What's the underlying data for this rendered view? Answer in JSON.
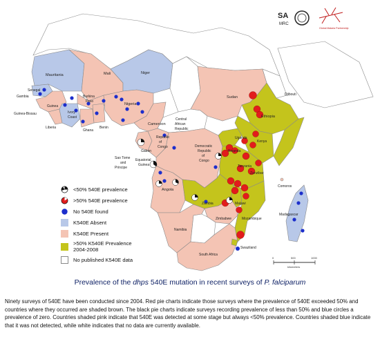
{
  "title": {
    "pre": "Prevalence of the ",
    "italic1": "dhps",
    "mid": " 540E mutation in recent surveys of ",
    "italic2": "P. falciparum"
  },
  "description": "Ninety surveys of 540E have been conducted since 2004. Red pie charts indicate those surveys where the prevalence of 540E exceeded 50% and countries where they occurred are shaded brown. The black pie charts indicate surveys recording prevalence of less than 50% and blue circles a prevalence of zero. Countries shaded pink indicate that 540E was detected at some stage but always <50% prevalence. Countries shaded blue indicate that it was not detected, while white indicates that no data are currently available.",
  "legend": [
    {
      "label": "<50% 540E prevalence",
      "kind": "black-pie"
    },
    {
      "label": ">50% 540E prevalence",
      "kind": "red-pie"
    },
    {
      "label": "No 540E found",
      "kind": "blue-dot"
    },
    {
      "label": "K540E Absent",
      "kind": "blue-fill"
    },
    {
      "label": "K540E Present",
      "kind": "pink-fill"
    },
    {
      "label": ">50% K540E Prevalence",
      "label2": "2004-2008",
      "kind": "olive-fill"
    },
    {
      "label": "No published K540E data",
      "kind": "white-fill"
    }
  ],
  "countries": {
    "mauritania": "Mauritania",
    "mali": "Mali",
    "niger": "Niger",
    "senegal": "Senegal",
    "gambia": "Gambia",
    "guinea_bissau": "Guinea-Bissau",
    "guinea": "Guinea",
    "liberia": "Liberia",
    "burkina": "Burkina",
    "faso": "Faso",
    "ivory": "Ivory",
    "coast": "Coast",
    "ghana": "Ghana",
    "benin": "Benin",
    "nigeria": "Nigeria",
    "cameroon": "Cameroon",
    "car1": "Central",
    "car2": "African",
    "car3": "Republic",
    "sudan": "Sudan",
    "djibouti": "Djibouti",
    "ethiopia": "Ethiopia",
    "uganda": "Uganda",
    "kenya": "Kenya",
    "rwanda": "Rwanda",
    "tanzania": "Tanzania",
    "zanzibar": "Zanzibar",
    "congo1": "Republic",
    "congo2": "of",
    "congo3": "Congo",
    "gabon": "Gabon",
    "drc1": "Democratic",
    "drc2": "Republic",
    "drc3": "of",
    "drc4": "Congo",
    "stp1": "Sao Tome",
    "stp2": "and",
    "stp3": "Principe",
    "eqg1": "Equatorial",
    "eqg2": "Guinea",
    "angola": "Angola",
    "zambia": "Zambia",
    "malawi": "Malawi",
    "zimbabwe": "Zimbabwe",
    "mozambique": "Mozambique",
    "comoros": "Comoros",
    "madagascar": "Madagascar",
    "namibia": "Namibia",
    "swaziland": "Swaziland",
    "south_africa": "South Africa"
  },
  "scale": {
    "t0": "0",
    "t1": "500",
    "t2": "1000",
    "unit": "kilometers"
  },
  "logos": {
    "mrc1": "SA",
    "mrc2": "MRC",
    "partner": "Global Malaria Partnership"
  },
  "colors": {
    "pink": "#f4c4b4",
    "blue_country": "#b8c8e8",
    "olive": "#c4c41c",
    "white": "#ffffff",
    "red_pie": "#e21c1c",
    "blue_dot": "#1c2ecc",
    "border": "#777777"
  }
}
